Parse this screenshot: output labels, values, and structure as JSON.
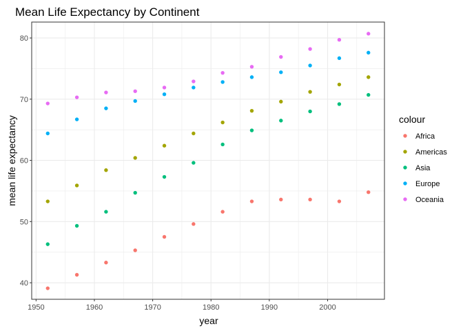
{
  "chart_data": {
    "type": "scatter",
    "title": "Mean Life Expectancy by Continent",
    "xlabel": "year",
    "ylabel": "mean life expectancy",
    "xlim": [
      1949.25,
      2009.75
    ],
    "ylim": [
      37.3,
      82.6
    ],
    "x_ticks": [
      1950,
      1960,
      1970,
      1980,
      1990,
      2000
    ],
    "y_ticks": [
      40,
      50,
      60,
      70,
      80
    ],
    "grid": true,
    "legend": {
      "title": "colour",
      "position": "right"
    },
    "x": [
      1952,
      1957,
      1962,
      1967,
      1972,
      1977,
      1982,
      1987,
      1992,
      1997,
      2002,
      2007
    ],
    "series": [
      {
        "name": "Africa",
        "color": "#F8766D",
        "values": [
          39.1,
          41.3,
          43.3,
          45.3,
          47.5,
          49.6,
          51.6,
          53.3,
          53.6,
          53.6,
          53.3,
          54.8
        ]
      },
      {
        "name": "Americas",
        "color": "#A3A500",
        "values": [
          53.3,
          55.9,
          58.4,
          60.4,
          62.4,
          64.4,
          66.2,
          68.1,
          69.6,
          71.2,
          72.4,
          73.6
        ]
      },
      {
        "name": "Asia",
        "color": "#00BF7D",
        "values": [
          46.3,
          49.3,
          51.6,
          54.7,
          57.3,
          59.6,
          62.6,
          64.9,
          66.5,
          68.0,
          69.2,
          70.7
        ]
      },
      {
        "name": "Europe",
        "color": "#00B0F6",
        "values": [
          64.4,
          66.7,
          68.5,
          69.7,
          70.8,
          71.9,
          72.8,
          73.6,
          74.4,
          75.5,
          76.7,
          77.6
        ]
      },
      {
        "name": "Oceania",
        "color": "#E76BF3",
        "values": [
          69.3,
          70.3,
          71.1,
          71.3,
          71.9,
          72.9,
          74.3,
          75.3,
          76.9,
          78.2,
          79.7,
          80.7
        ]
      }
    ]
  }
}
